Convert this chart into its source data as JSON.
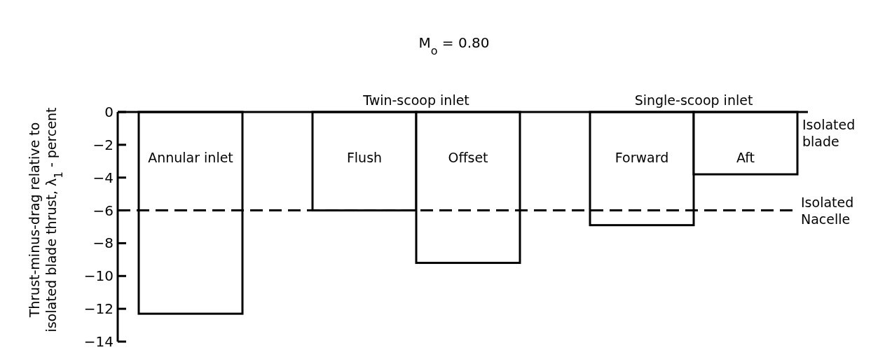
{
  "chart_data": {
    "type": "bar",
    "title": "M$_{o}$ = 0.80",
    "ylabel": "Thrust-minus-drag relative to isolated blade thrust, λ$_{1}$ - percent",
    "categories": [
      "Annular inlet",
      "Flush",
      "Offset",
      "Forward",
      "Aft"
    ],
    "values": [
      -12.3,
      -6.0,
      -9.2,
      -6.9,
      -3.8
    ],
    "color": "#ffffff",
    "ylim": [
      -14,
      0
    ],
    "yticks": [
      0,
      -2,
      -4,
      -6,
      -8,
      -10,
      -12,
      -14
    ],
    "grid": false,
    "ref_lines": [
      {
        "axis": "y",
        "value": 0,
        "label": "Isolated blade",
        "line_style": "solid"
      },
      {
        "axis": "y",
        "value": -6,
        "label": "Isolated Nacelle",
        "line_style": "dashed"
      }
    ],
    "annotations": [
      "Twin-scoop inlet",
      "Single-scoop inlet"
    ]
  }
}
